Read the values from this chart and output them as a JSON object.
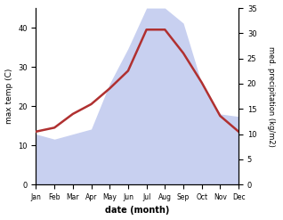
{
  "months": [
    "Jan",
    "Feb",
    "Mar",
    "Apr",
    "May",
    "Jun",
    "Jul",
    "Aug",
    "Sep",
    "Oct",
    "Nov",
    "Dec"
  ],
  "max_temp": [
    13.5,
    14.5,
    18.0,
    20.5,
    24.5,
    29.0,
    39.5,
    39.5,
    33.5,
    26.0,
    17.5,
    13.5
  ],
  "precipitation": [
    10.0,
    9.0,
    10.0,
    11.0,
    20.0,
    27.0,
    35.0,
    35.0,
    32.0,
    20.0,
    14.0,
    13.5
  ],
  "temp_color": "#b03030",
  "precip_fill_color": "#c8d0f0",
  "temp_ylim": [
    0,
    45
  ],
  "precip_ylim": [
    0,
    35
  ],
  "temp_yticks": [
    0,
    10,
    20,
    30,
    40
  ],
  "precip_yticks": [
    0,
    5,
    10,
    15,
    20,
    25,
    30,
    35
  ],
  "xlabel": "date (month)",
  "ylabel_left": "max temp (C)",
  "ylabel_right": "med. precipitation (kg/m2)",
  "background_color": "#ffffff"
}
